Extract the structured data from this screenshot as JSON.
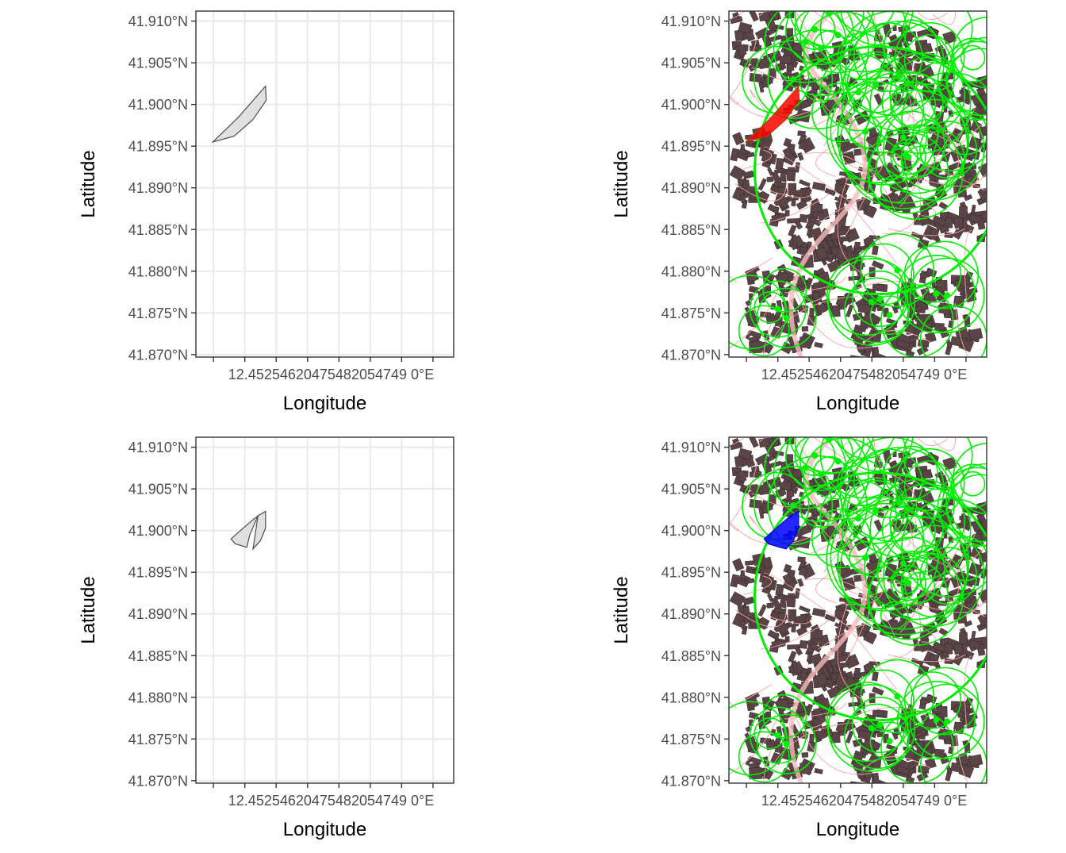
{
  "colors": {
    "grid": "#ebebeb",
    "panel_border": "#333333",
    "tick_text": "#4d4d4d",
    "polygon_fill": "#e0e0e0",
    "polygon_stroke": "#4d4d4d",
    "map_building": "#5a4446",
    "map_street": "#f3a3a3",
    "map_circles": "#00ee00",
    "highlight_red": "#ff0000",
    "highlight_blue": "#0000ff"
  },
  "chart_data": [
    {
      "type": "map",
      "panel": "top-left",
      "xlabel": "Longitude",
      "ylabel": "Latitude",
      "xlim": [
        12.4497,
        12.4908
      ],
      "ylim": [
        41.8697,
        41.9112
      ],
      "x_ticks": [
        12.4525,
        12.4575,
        12.4625,
        12.4675,
        12.4725,
        12.4775,
        12.4825,
        12.4875
      ],
      "x_tick_labels": [
        "12.4525",
        "12.4575",
        "12.4625",
        "12.4675",
        "12.4725",
        "12.4775",
        "12.4825",
        "12.4875"
      ],
      "x_tick_text": "12.45254620475482054749 0°E",
      "y_ticks": [
        41.87,
        41.875,
        41.88,
        41.885,
        41.89,
        41.895,
        41.9,
        41.905,
        41.91
      ],
      "y_tick_labels": [
        "41.870°N",
        "41.875°N",
        "41.880°N",
        "41.885°N",
        "41.890°N",
        "41.895°N",
        "41.900°N",
        "41.905°N",
        "41.910°N"
      ],
      "grid": true,
      "polygons": [
        {
          "fill": "#e0e0e0",
          "stroke": "#4d4d4d",
          "points": [
            [
              12.4524,
              41.8955
            ],
            [
              12.4565,
              41.8985
            ],
            [
              12.4608,
              41.9022
            ],
            [
              12.4609,
              41.9005
            ],
            [
              12.4588,
              41.8982
            ],
            [
              12.4558,
              41.8962
            ],
            [
              12.4524,
              41.8955
            ]
          ]
        }
      ]
    },
    {
      "type": "map",
      "panel": "top-right",
      "xlabel": "Longitude",
      "ylabel": "Latitude",
      "xlim": [
        12.4497,
        12.4908
      ],
      "ylim": [
        41.8697,
        41.9112
      ],
      "x_ticks": [
        12.4525,
        12.4575,
        12.4625,
        12.4675,
        12.4725,
        12.4775,
        12.4825,
        12.4875
      ],
      "x_tick_labels": [
        "12.4525",
        "12.4575",
        "12.4625",
        "12.4675",
        "12.4725",
        "12.4775",
        "12.4825",
        "12.4875"
      ],
      "x_tick_text": "12.45254620475482054749 0°E",
      "y_ticks": [
        41.87,
        41.875,
        41.88,
        41.885,
        41.89,
        41.895,
        41.9,
        41.905,
        41.91
      ],
      "y_tick_labels": [
        "41.870°N",
        "41.875°N",
        "41.880°N",
        "41.885°N",
        "41.890°N",
        "41.895°N",
        "41.900°N",
        "41.905°N",
        "41.910°N"
      ],
      "basemap": "street-buildings",
      "overlay": "green-circles",
      "polygons": [
        {
          "fill": "#ff0000",
          "stroke": "#aa4400",
          "points": [
            [
              12.4524,
              41.8955
            ],
            [
              12.4565,
              41.8985
            ],
            [
              12.4608,
              41.9022
            ],
            [
              12.4609,
              41.9005
            ],
            [
              12.4588,
              41.8982
            ],
            [
              12.4558,
              41.8962
            ],
            [
              12.4524,
              41.8955
            ]
          ]
        }
      ]
    },
    {
      "type": "map",
      "panel": "bottom-left",
      "xlabel": "Longitude",
      "ylabel": "Latitude",
      "xlim": [
        12.4497,
        12.4908
      ],
      "ylim": [
        41.8697,
        41.9112
      ],
      "x_ticks": [
        12.4525,
        12.4575,
        12.4625,
        12.4675,
        12.4725,
        12.4775,
        12.4825,
        12.4875
      ],
      "x_tick_labels": [
        "12.4525",
        "12.4575",
        "12.4625",
        "12.4675",
        "12.4725",
        "12.4775",
        "12.4825",
        "12.4875"
      ],
      "x_tick_text": "12.45254620475482054749 0°E",
      "y_ticks": [
        41.87,
        41.875,
        41.88,
        41.885,
        41.89,
        41.895,
        41.9,
        41.905,
        41.91
      ],
      "y_tick_labels": [
        "41.870°N",
        "41.875°N",
        "41.880°N",
        "41.885°N",
        "41.890°N",
        "41.895°N",
        "41.900°N",
        "41.905°N",
        "41.910°N"
      ],
      "grid": true,
      "polygons": [
        {
          "fill": "#e0e0e0",
          "stroke": "#4d4d4d",
          "points": [
            [
              12.4553,
              41.899
            ],
            [
              12.458,
              41.9008
            ],
            [
              12.4596,
              41.9018
            ],
            [
              12.4583,
              41.8995
            ],
            [
              12.4578,
              41.898
            ],
            [
              12.456,
              41.8984
            ],
            [
              12.4553,
              41.899
            ]
          ]
        },
        {
          "fill": "#e0e0e0",
          "stroke": "#4d4d4d",
          "points": [
            [
              12.4588,
              41.8978
            ],
            [
              12.4596,
              41.9018
            ],
            [
              12.4608,
              41.9023
            ],
            [
              12.4608,
              41.9003
            ],
            [
              12.46,
              41.8988
            ],
            [
              12.4588,
              41.8978
            ]
          ]
        }
      ]
    },
    {
      "type": "map",
      "panel": "bottom-right",
      "xlabel": "Longitude",
      "ylabel": "Latitude",
      "xlim": [
        12.4497,
        12.4908
      ],
      "ylim": [
        41.8697,
        41.9112
      ],
      "x_ticks": [
        12.4525,
        12.4575,
        12.4625,
        12.4675,
        12.4725,
        12.4775,
        12.4825,
        12.4875
      ],
      "x_tick_labels": [
        "12.4525",
        "12.4575",
        "12.4625",
        "12.4675",
        "12.4725",
        "12.4775",
        "12.4825",
        "12.4875"
      ],
      "x_tick_text": "12.45254620475482054749 0°E",
      "y_ticks": [
        41.87,
        41.875,
        41.88,
        41.885,
        41.89,
        41.895,
        41.9,
        41.905,
        41.91
      ],
      "y_tick_labels": [
        "41.870°N",
        "41.875°N",
        "41.880°N",
        "41.885°N",
        "41.890°N",
        "41.895°N",
        "41.900°N",
        "41.905°N",
        "41.910°N"
      ],
      "basemap": "street-buildings",
      "overlay": "green-circles",
      "polygons": [
        {
          "fill": "#0000ff",
          "stroke": "#0000cc",
          "points": [
            [
              12.4553,
              41.899
            ],
            [
              12.458,
              41.9008
            ],
            [
              12.4596,
              41.9018
            ],
            [
              12.4608,
              41.9023
            ],
            [
              12.4608,
              41.9003
            ],
            [
              12.46,
              41.8988
            ],
            [
              12.4588,
              41.8978
            ],
            [
              12.4578,
              41.898
            ],
            [
              12.456,
              41.8984
            ],
            [
              12.4553,
              41.899
            ]
          ]
        }
      ]
    }
  ]
}
